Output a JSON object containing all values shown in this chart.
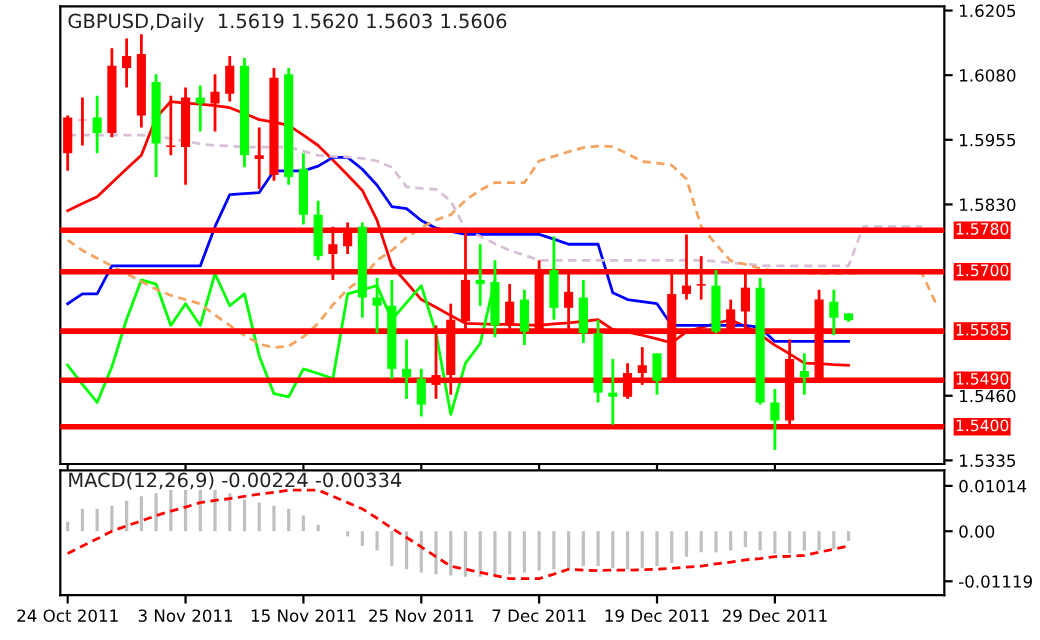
{
  "chart_data": [
    {
      "type": "candlestick",
      "title": "GBPUSD,Daily  1.5619 1.5620 1.5603 1.5606",
      "ohlc": [
        [
          1.5929,
          1.6002,
          1.5895,
          1.5998
        ],
        [
          1.5993,
          1.6037,
          1.5944,
          1.5994
        ],
        [
          1.5998,
          1.604,
          1.5929,
          1.5968
        ],
        [
          1.5968,
          1.6132,
          1.596,
          1.6098
        ],
        [
          1.6094,
          1.6151,
          1.6056,
          1.6117
        ],
        [
          1.6002,
          1.6159,
          1.5979,
          1.6121
        ],
        [
          1.6067,
          1.6082,
          1.5883,
          1.5948
        ],
        [
          1.5941,
          1.604,
          1.5925,
          1.5944
        ],
        [
          1.5941,
          1.6056,
          1.5868,
          1.6037
        ],
        [
          1.6037,
          1.606,
          1.5971,
          1.6025
        ],
        [
          1.6025,
          1.6082,
          1.5971,
          1.6048
        ],
        [
          1.6044,
          1.6117,
          1.6029,
          1.6098
        ],
        [
          1.6098,
          1.6113,
          1.5902,
          1.5925
        ],
        [
          1.5918,
          1.5979,
          1.586,
          1.5925
        ],
        [
          1.5887,
          1.6094,
          1.5876,
          1.6075
        ],
        [
          1.6082,
          1.6094,
          1.5868,
          1.5883
        ],
        [
          1.5899,
          1.5929,
          1.5791,
          1.581
        ],
        [
          1.581,
          1.5837,
          1.5722,
          1.573
        ],
        [
          1.5734,
          1.5787,
          1.5684,
          1.5753
        ],
        [
          1.5749,
          1.5795,
          1.5734,
          1.5783
        ],
        [
          1.5787,
          1.5795,
          1.5611,
          1.565
        ],
        [
          1.565,
          1.5688,
          1.5581,
          1.5634
        ],
        [
          1.5634,
          1.5684,
          1.5493,
          1.5512
        ],
        [
          1.5512,
          1.5569,
          1.5454,
          1.5496
        ],
        [
          1.5493,
          1.5512,
          1.542,
          1.5443
        ],
        [
          1.5481,
          1.5596,
          1.5454,
          1.55
        ],
        [
          1.55,
          1.5638,
          1.5462,
          1.5607
        ],
        [
          1.5604,
          1.578,
          1.5581,
          1.5684
        ],
        [
          1.5684,
          1.5753,
          1.5634,
          1.5676
        ],
        [
          1.568,
          1.5722,
          1.5573,
          1.5596
        ],
        [
          1.5596,
          1.5676,
          1.5581,
          1.5642
        ],
        [
          1.5646,
          1.5665,
          1.5558,
          1.5584
        ],
        [
          1.5584,
          1.5722,
          1.5581,
          1.5699
        ],
        [
          1.5703,
          1.5768,
          1.5607,
          1.563
        ],
        [
          1.563,
          1.5703,
          1.5581,
          1.5661
        ],
        [
          1.565,
          1.5684,
          1.5562,
          1.5581
        ],
        [
          1.5581,
          1.5607,
          1.5447,
          1.5466
        ],
        [
          1.5466,
          1.5531,
          1.5404,
          1.5458
        ],
        [
          1.5458,
          1.5523,
          1.5454,
          1.5504
        ],
        [
          1.5504,
          1.5554,
          1.5481,
          1.5519
        ],
        [
          1.5542,
          1.5542,
          1.5462,
          1.5489
        ],
        [
          1.5489,
          1.5703,
          1.5489,
          1.5657
        ],
        [
          1.5657,
          1.5772,
          1.5646,
          1.5673
        ],
        [
          1.5673,
          1.573,
          1.5646,
          1.5676
        ],
        [
          1.5673,
          1.5703,
          1.5581,
          1.5584
        ],
        [
          1.5584,
          1.5646,
          1.5584,
          1.5627
        ],
        [
          1.5623,
          1.5696,
          1.5584,
          1.5669
        ],
        [
          1.5669,
          1.5688,
          1.5443,
          1.5447
        ],
        [
          1.5447,
          1.5473,
          1.5355,
          1.5412
        ],
        [
          1.5412,
          1.5569,
          1.5404,
          1.5531
        ],
        [
          1.5508,
          1.5542,
          1.5462,
          1.5496
        ],
        [
          1.5489,
          1.5665,
          1.5489,
          1.5646
        ],
        [
          1.5642,
          1.5665,
          1.5577,
          1.5611
        ],
        [
          1.5619,
          1.562,
          1.5603,
          1.5606
        ],
        null,
        null,
        null,
        null,
        null,
        null
      ],
      "colors": [
        "#ff0000",
        "#ff0000",
        "#00ff00",
        "#ff0000",
        "#ff0000",
        "#ff0000",
        "#00ff00",
        "#ff0000",
        "#ff0000",
        "#00ff00",
        "#ff0000",
        "#ff0000",
        "#00ff00",
        "#ff0000",
        "#ff0000",
        "#00ff00",
        "#00ff00",
        "#00ff00",
        "#ff0000",
        "#ff0000",
        "#00ff00",
        "#00ff00",
        "#00ff00",
        "#00ff00",
        "#00ff00",
        "#ff0000",
        "#ff0000",
        "#ff0000",
        "#00ff00",
        "#00ff00",
        "#ff0000",
        "#00ff00",
        "#ff0000",
        "#00ff00",
        "#ff0000",
        "#00ff00",
        "#00ff00",
        "#00ff00",
        "#ff0000",
        "#ff0000",
        "#00ff00",
        "#ff0000",
        "#ff0000",
        "#ff0000",
        "#00ff00",
        "#ff0000",
        "#ff0000",
        "#00ff00",
        "#00ff00",
        "#ff0000",
        "#00ff00",
        "#ff0000",
        "#00ff00",
        "#00ff00",
        null,
        null,
        null,
        null,
        null,
        null
      ],
      "series": [
        {
          "type": "line",
          "color": "#ff0000",
          "line_style": "solid",
          "values": [
            1.5818,
            1.5832,
            1.5845,
            1.5872,
            1.5899,
            1.5925,
            1.5998,
            1.6029,
            1.6026,
            1.6024,
            1.6021,
            1.6017,
            1.6006,
            1.5994,
            1.5989,
            1.5983,
            1.5964,
            1.5944,
            1.5916,
            1.5887,
            1.5857,
            1.5799,
            1.5711,
            1.5679,
            1.5646,
            1.5631,
            1.5615,
            1.56,
            1.5599,
            1.5598,
            1.5598,
            1.5597,
            1.5596,
            1.5599,
            1.5601,
            1.5604,
            1.5607,
            1.5588,
            1.5583,
            1.5577,
            1.557,
            1.5562,
            1.5584,
            1.5592,
            1.56,
            1.5607,
            1.5594,
            1.5578,
            1.5558,
            1.5541,
            1.5523,
            1.5522,
            1.552,
            1.5519,
            null,
            null,
            null,
            null,
            null,
            null
          ]
        },
        {
          "type": "line",
          "color": "#0000ff",
          "line_style": "solid",
          "values": [
            1.5638,
            1.5657,
            1.5657,
            1.5711,
            1.5711,
            1.5711,
            1.5711,
            1.5711,
            1.5711,
            1.5711,
            1.5787,
            1.5849,
            1.5851,
            1.5853,
            1.5895,
            1.5895,
            1.5895,
            1.5904,
            1.5921,
            1.5921,
            1.5898,
            1.5867,
            1.5826,
            1.5822,
            1.5799,
            1.5784,
            1.5778,
            1.5772,
            1.5772,
            1.5772,
            1.5772,
            1.5772,
            1.5772,
            1.5763,
            1.5753,
            1.5753,
            1.5753,
            1.5659,
            1.5646,
            1.5642,
            1.5638,
            1.5596,
            1.5596,
            1.5596,
            1.5596,
            1.5596,
            1.5596,
            1.5592,
            1.5565,
            1.5565,
            1.5565,
            1.5565,
            1.5565,
            1.5565,
            null,
            null,
            null,
            null,
            null,
            null
          ]
        },
        {
          "type": "line",
          "color": "#00ff00",
          "line_style": "solid",
          "values": [
            1.5519,
            1.5482,
            1.5447,
            1.5516,
            1.5608,
            1.5684,
            1.5676,
            1.5596,
            1.5638,
            1.5596,
            1.5696,
            1.5634,
            1.5657,
            1.5537,
            1.5464,
            1.5458,
            1.5512,
            1.5503,
            1.5493,
            1.5657,
            1.5665,
            1.5673,
            1.5607,
            1.564,
            1.5673,
            1.5581,
            1.5424,
            1.5523,
            1.5561,
            1.5684,
            null,
            null,
            null,
            null,
            null,
            null,
            null,
            null,
            null,
            null,
            null,
            null,
            null,
            null,
            null,
            null,
            null,
            null,
            null,
            null,
            null,
            null,
            null,
            null,
            null,
            null,
            null,
            null,
            null,
            null
          ]
        },
        {
          "type": "line",
          "color": "#d8bfd8",
          "line_style": "dashed",
          "values": [
            1.5964,
            1.5964,
            1.5964,
            1.5964,
            1.5964,
            1.5964,
            1.5963,
            1.5957,
            1.5952,
            1.5947,
            1.5944,
            1.5943,
            1.5941,
            1.5941,
            1.5941,
            1.5941,
            1.5933,
            1.5925,
            1.5923,
            1.5922,
            1.5919,
            1.5914,
            1.5902,
            1.5864,
            1.5861,
            1.5859,
            1.5837,
            1.5782,
            1.5768,
            1.5754,
            1.5741,
            1.5732,
            1.5722,
            1.5722,
            1.5722,
            1.5722,
            1.5722,
            1.5722,
            1.5722,
            1.5722,
            1.5722,
            1.5722,
            1.5722,
            1.5722,
            1.572,
            1.5717,
            1.5715,
            1.5712,
            1.5711,
            1.5711,
            1.5711,
            1.5711,
            1.5711,
            1.5711,
            1.5787,
            1.5787,
            1.5787,
            1.5787,
            1.5787,
            null
          ]
        },
        {
          "type": "line",
          "color": "#f4a460",
          "line_style": "dashed",
          "values": [
            1.5761,
            1.5741,
            1.5726,
            1.5711,
            1.5696,
            1.5681,
            1.5666,
            1.5654,
            1.5646,
            1.5638,
            1.5616,
            1.5596,
            1.5577,
            1.556,
            1.5553,
            1.5556,
            1.5574,
            1.56,
            1.5636,
            1.5666,
            1.5687,
            1.5722,
            1.5741,
            1.5766,
            1.5785,
            1.58,
            1.581,
            1.5838,
            1.5858,
            1.5872,
            1.5872,
            1.5872,
            1.5914,
            1.5923,
            1.5932,
            1.594,
            1.5943,
            1.5942,
            1.5928,
            1.5913,
            1.591,
            1.5906,
            1.5879,
            1.5787,
            1.5753,
            1.5721,
            1.5714,
            1.5706,
            1.5701,
            1.5699,
            1.5697,
            1.5696,
            1.5696,
            1.5696,
            1.5698,
            1.5701,
            1.5702,
            1.5699,
            1.5696,
            1.5634
          ]
        }
      ],
      "ref_lines": [
        {
          "axis": "y",
          "value": 1.578,
          "label": "1.5780",
          "color": "#ff0000"
        },
        {
          "axis": "y",
          "value": 1.57,
          "label": "1.5700",
          "color": "#ff0000"
        },
        {
          "axis": "y",
          "value": 1.5585,
          "label": "1.5585",
          "color": "#ff0000"
        },
        {
          "axis": "y",
          "value": 1.549,
          "label": "1.5490",
          "color": "#ff0000"
        },
        {
          "axis": "y",
          "value": 1.54,
          "label": "1.5400",
          "color": "#ff0000"
        }
      ],
      "ylim": [
        1.5328,
        1.6213
      ],
      "yticks": [
        1.6205,
        {
          "value": 1.608,
          "label": "1.6080"
        },
        1.5955,
        {
          "value": 1.583,
          "label": "1.5830"
        },
        {
          "value": 1.546,
          "label": "1.5460"
        },
        1.5335
      ],
      "tick_labels": "y",
      "grid": false,
      "legend": false
    },
    {
      "type": "bar",
      "title": "MACD(12,26,9) -0.00224 -0.00334",
      "categories": [
        "24 Oct 2011",
        null,
        null,
        null,
        null,
        null,
        null,
        null,
        "3 Nov 2011",
        null,
        null,
        null,
        null,
        null,
        null,
        null,
        "15 Nov 2011",
        null,
        null,
        null,
        null,
        null,
        null,
        null,
        "25 Nov 2011",
        null,
        null,
        null,
        null,
        null,
        null,
        null,
        "7 Dec 2011",
        null,
        null,
        null,
        null,
        null,
        null,
        null,
        "19 Dec 2011",
        null,
        null,
        null,
        null,
        null,
        null,
        null,
        "29 Dec 2011",
        null,
        null,
        null,
        null,
        null,
        null,
        null,
        null,
        null,
        null,
        null
      ],
      "series": [
        {
          "type": "bar",
          "color": "#c0c0c0",
          "values": [
            0.0021,
            0.005,
            0.005,
            0.0057,
            0.0068,
            0.0078,
            0.0085,
            0.0092,
            0.0092,
            0.0092,
            0.0092,
            0.0085,
            0.0071,
            0.0064,
            0.0057,
            0.005,
            0.0035,
            0.0014,
            null,
            -0.0011,
            -0.0033,
            -0.0043,
            -0.0078,
            -0.0085,
            -0.0092,
            -0.0096,
            -0.0099,
            -0.0102,
            -0.0102,
            -0.0099,
            -0.0096,
            -0.0092,
            -0.0088,
            -0.0085,
            -0.0082,
            -0.0078,
            -0.0078,
            -0.0082,
            -0.0085,
            -0.0082,
            -0.0078,
            -0.0071,
            -0.0057,
            -0.0047,
            -0.0047,
            -0.0043,
            -0.0035,
            -0.0043,
            -0.005,
            -0.005,
            -0.0043,
            -0.0043,
            -0.004,
            -0.0022,
            null,
            null,
            null,
            null,
            null,
            null
          ]
        },
        {
          "type": "line",
          "color": "#ff0000",
          "line_style": "dashed",
          "values": [
            -0.005,
            -0.0033,
            -0.0017,
            0.0,
            0.0012,
            0.0023,
            0.0035,
            0.0045,
            0.0054,
            0.0064,
            0.0069,
            0.0073,
            0.0078,
            0.0083,
            0.0087,
            0.0092,
            0.0092,
            0.0092,
            0.0078,
            0.0064,
            0.005,
            0.0029,
            0.0007,
            -0.0014,
            -0.0035,
            -0.0057,
            -0.0078,
            -0.0085,
            -0.0092,
            -0.0099,
            -0.0106,
            -0.0106,
            -0.0106,
            -0.0096,
            -0.0085,
            -0.0087,
            -0.0088,
            -0.0087,
            -0.0087,
            -0.0086,
            -0.0085,
            -0.0083,
            -0.008,
            -0.0078,
            -0.0073,
            -0.0069,
            -0.0064,
            -0.0061,
            -0.0057,
            -0.0056,
            -0.0054,
            -0.0047,
            -0.004,
            -0.0033,
            null,
            null,
            null,
            null,
            null,
            null
          ]
        }
      ],
      "ylim": [
        -0.0143,
        0.0136
      ],
      "yticks": [
        0.01014,
        {
          "value": 0,
          "label": "0.00"
        },
        -0.01119
      ],
      "grid": false,
      "legend": false
    }
  ]
}
